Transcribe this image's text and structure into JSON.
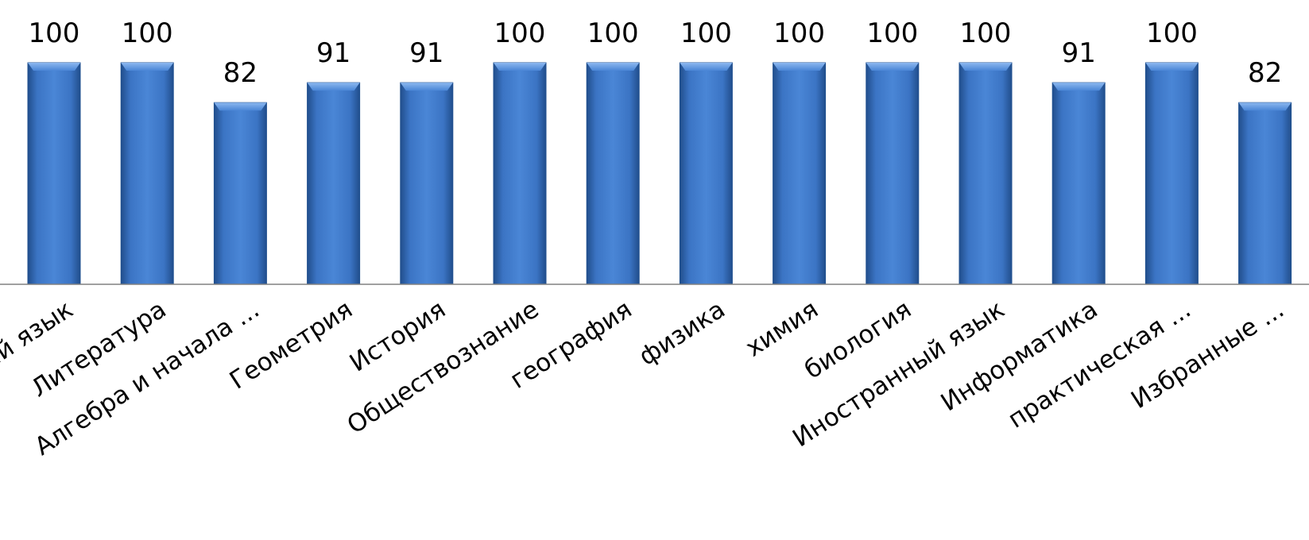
{
  "chart_data": {
    "type": "bar",
    "categories": [
      "Русский язык",
      "Литература",
      "Алгебра и начала ...",
      "Геометрия",
      "История",
      "Обществознание",
      "география",
      "физика",
      "химия",
      "биология",
      "Иностранный язык",
      "Информатика",
      "практическая ...",
      "Избранные ..."
    ],
    "values": [
      100,
      100,
      82,
      91,
      91,
      100,
      100,
      100,
      100,
      100,
      100,
      91,
      100,
      82
    ],
    "title": "",
    "xlabel": "",
    "ylabel": "",
    "ylim": [
      0,
      100
    ],
    "grid": false,
    "legend": "none",
    "bar_color": "#3f78c9",
    "bar_top_color": "#6fa3ea",
    "bar_edge_color": "#1f4f8f",
    "axis_color": "#808080"
  }
}
